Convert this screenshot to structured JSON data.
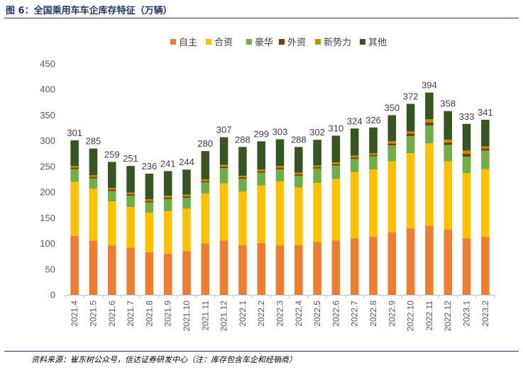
{
  "figure": {
    "title": "图 6：全国乘用车车企库存特征（万辆）",
    "source": "资料来源：崔东树公众号，信达证券研发中心（注：库存包含车企和经销商）"
  },
  "chart_data": {
    "type": "bar",
    "stacked": true,
    "title": "",
    "xlabel": "",
    "ylabel": "",
    "ylim": [
      0,
      450
    ],
    "yticks": [
      0,
      50,
      100,
      150,
      200,
      250,
      300,
      350,
      400,
      450
    ],
    "grid": false,
    "legend_position": "top",
    "categories": [
      "2021.4",
      "2021.5",
      "2021.6",
      "2021.7",
      "2021.8",
      "2021.9",
      "2021.10",
      "2021.11",
      "2021.12",
      "2022.1",
      "2022.2",
      "2022.3",
      "2022.4",
      "2022.5",
      "2022.6",
      "2022.7",
      "2022.8",
      "2022.9",
      "2022.10",
      "2022.11",
      "2022.12",
      "2023.1",
      "2023.2"
    ],
    "totals": [
      301,
      285,
      259,
      251,
      236,
      241,
      244,
      280,
      307,
      288,
      299,
      303,
      288,
      302,
      310,
      324,
      326,
      350,
      372,
      394,
      358,
      333,
      341
    ],
    "series": [
      {
        "name": "自主",
        "color": "#ed7d31",
        "values": [
          115,
          106,
          96,
          92,
          83,
          80,
          85,
          100,
          106,
          97,
          101,
          96,
          97,
          103,
          106,
          110,
          113,
          122,
          130,
          135,
          127,
          110,
          113
        ]
      },
      {
        "name": "合资",
        "color": "#ffc000",
        "values": [
          105,
          101,
          86,
          79,
          77,
          83,
          83,
          97,
          111,
          104,
          112,
          125,
          112,
          115,
          120,
          129,
          131,
          138,
          146,
          160,
          133,
          127,
          132
        ]
      },
      {
        "name": "豪华",
        "color": "#70ad47",
        "values": [
          25,
          20,
          20,
          22,
          20,
          24,
          21,
          22,
          30,
          25,
          25,
          24,
          23,
          28,
          26,
          26,
          26,
          31,
          33,
          35,
          32,
          32,
          36
        ]
      },
      {
        "name": "外资",
        "color": "#843c0c",
        "values": [
          3,
          3,
          3,
          3,
          3,
          3,
          3,
          3,
          3,
          3,
          3,
          3,
          3,
          3,
          3,
          3,
          3,
          4,
          5,
          6,
          5,
          6,
          4
        ]
      },
      {
        "name": "新势力",
        "color": "#bf9000",
        "values": [
          3,
          3,
          3,
          3,
          3,
          3,
          3,
          3,
          3,
          3,
          3,
          3,
          3,
          3,
          3,
          3,
          3,
          4,
          4,
          6,
          5,
          6,
          4
        ]
      },
      {
        "name": "其他",
        "color": "#375623",
        "values": [
          50,
          52,
          51,
          52,
          50,
          48,
          49,
          55,
          54,
          56,
          55,
          52,
          50,
          50,
          52,
          53,
          50,
          51,
          54,
          52,
          56,
          52,
          52
        ]
      }
    ]
  }
}
